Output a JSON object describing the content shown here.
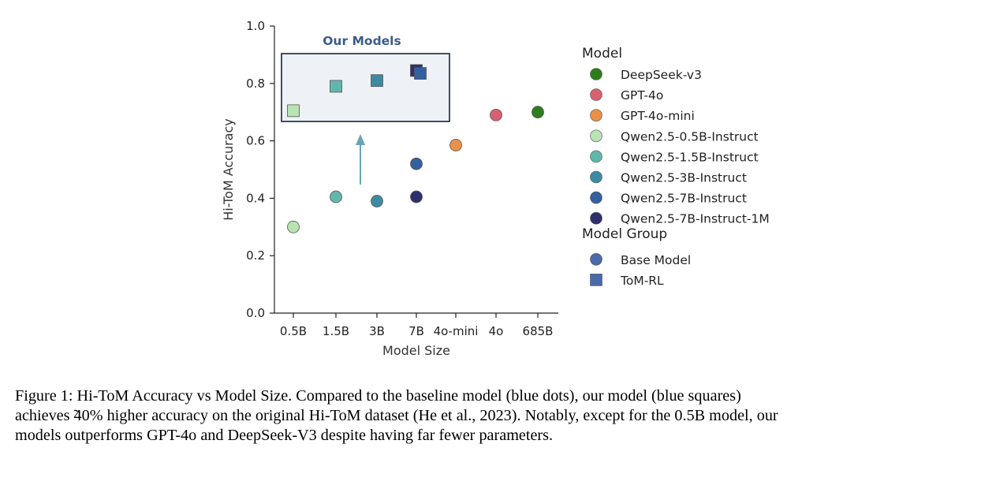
{
  "chart_data": {
    "type": "scatter",
    "xlabel": "Model Size",
    "ylabel": "Hi-ToM Accuracy",
    "ylim": [
      0.0,
      1.0
    ],
    "yticks": [
      "0.0",
      "0.2",
      "0.4",
      "0.6",
      "0.8",
      "1.0"
    ],
    "categories": [
      "0.5B",
      "1.5B",
      "3B",
      "7B",
      "4o-mini",
      "4o",
      "685B"
    ],
    "inset_title": "Our Models",
    "base_model_points": [
      {
        "model": "Qwen2.5-0.5B-Instruct",
        "x": "0.5B",
        "y": 0.3
      },
      {
        "model": "Qwen2.5-1.5B-Instruct",
        "x": "1.5B",
        "y": 0.405
      },
      {
        "model": "Qwen2.5-3B-Instruct",
        "x": "3B",
        "y": 0.39
      },
      {
        "model": "Qwen2.5-7B-Instruct",
        "x": "7B",
        "y": 0.52
      },
      {
        "model": "Qwen2.5-7B-Instruct-1M",
        "x": "7B",
        "y": 0.405
      },
      {
        "model": "GPT-4o-mini",
        "x": "4o-mini",
        "y": 0.585
      },
      {
        "model": "GPT-4o",
        "x": "4o",
        "y": 0.69
      },
      {
        "model": "DeepSeek-v3",
        "x": "685B",
        "y": 0.7
      }
    ],
    "tom_rl_points": [
      {
        "model": "Qwen2.5-0.5B-Instruct",
        "x": "0.5B",
        "y": 0.705
      },
      {
        "model": "Qwen2.5-1.5B-Instruct",
        "x": "1.5B",
        "y": 0.79
      },
      {
        "model": "Qwen2.5-3B-Instruct",
        "x": "3B",
        "y": 0.81
      },
      {
        "model": "Qwen2.5-7B-Instruct-1M",
        "x": "7B",
        "y": 0.845
      },
      {
        "model": "Qwen2.5-7B-Instruct",
        "x": "7B",
        "y": 0.835
      }
    ],
    "legend": {
      "model_title": "Model",
      "models": [
        {
          "name": "DeepSeek-v3",
          "color": "#2e7d1e"
        },
        {
          "name": "GPT-4o",
          "color": "#d9616f"
        },
        {
          "name": "GPT-4o-mini",
          "color": "#e8914a"
        },
        {
          "name": "Qwen2.5-0.5B-Instruct",
          "color": "#b8e3b3"
        },
        {
          "name": "Qwen2.5-1.5B-Instruct",
          "color": "#62b7ad"
        },
        {
          "name": "Qwen2.5-3B-Instruct",
          "color": "#3c8ba3"
        },
        {
          "name": "Qwen2.5-7B-Instruct",
          "color": "#35609e"
        },
        {
          "name": "Qwen2.5-7B-Instruct-1M",
          "color": "#2f2f6e"
        }
      ],
      "group_title": "Model Group",
      "groups": [
        {
          "name": "Base Model",
          "marker": "circle",
          "color": "#4a6aa8"
        },
        {
          "name": "ToM-RL",
          "marker": "square",
          "color": "#4a6aa8"
        }
      ]
    },
    "colors": {
      "inset_fill": "#eef2f7",
      "inset_stroke": "#2c3e50",
      "inset_title": "#3b5c8c",
      "arrow": "#6aa3b5"
    }
  },
  "caption": {
    "line1": "Figure 1: Hi-ToM Accuracy vs Model Size. Compared to the baseline model (blue dots), our model (blue squares)",
    "line2": "achieves ̃40% higher accuracy on the original Hi-ToM dataset (He et al., 2023). Notably, except for the 0.5B model, our",
    "line3": "models outperforms GPT-4o and DeepSeek-V3 despite having far fewer parameters."
  }
}
